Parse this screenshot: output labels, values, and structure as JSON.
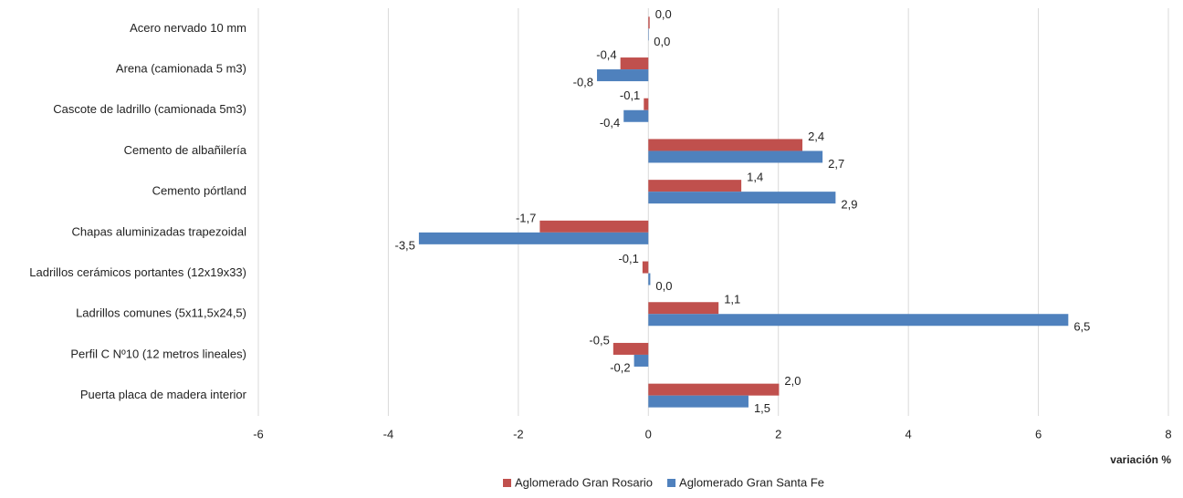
{
  "chart_data": {
    "type": "hbar",
    "categories": [
      "Acero nervado 10 mm",
      "Arena (camionada 5 m3)",
      "Cascote de ladrillo (camionada 5m3)",
      "Cemento de albañilería",
      "Cemento pórtland",
      "Chapas aluminizadas trapezoidal",
      "Ladrillos cerámicos portantes (12x19x33)",
      "Ladrillos comunes (5x11,5x24,5)",
      "Perfil C Nº10 (12 metros  lineales)",
      "Puerta placa de madera interior"
    ],
    "series": [
      {
        "name": "Aglomerado Gran Rosario",
        "color": "#c0504d",
        "values": [
          0.02,
          -0.43,
          -0.07,
          2.37,
          1.43,
          -1.67,
          -0.09,
          1.08,
          -0.54,
          2.01
        ],
        "value_labels": [
          "0,0",
          "-0,4",
          "-0,1",
          "2,4",
          "1,4",
          "-1,7",
          "-0,1",
          "1,1",
          "-0,5",
          "2,0"
        ]
      },
      {
        "name": "Aglomerado Gran Santa Fe",
        "color": "#4f81bd",
        "values": [
          0.0,
          -0.79,
          -0.38,
          2.68,
          2.88,
          -3.53,
          0.03,
          6.46,
          -0.22,
          1.54
        ],
        "value_labels": [
          "0,0",
          "-0,8",
          "-0,4",
          "2,7",
          "2,9",
          "-3,5",
          "0,0",
          "6,5",
          "-0,2",
          "1,5"
        ]
      }
    ],
    "xlim": [
      -6,
      8
    ],
    "xticks": [
      -6,
      -4,
      -2,
      0,
      2,
      4,
      6,
      8
    ],
    "x_label": "variación %",
    "grid": true
  }
}
